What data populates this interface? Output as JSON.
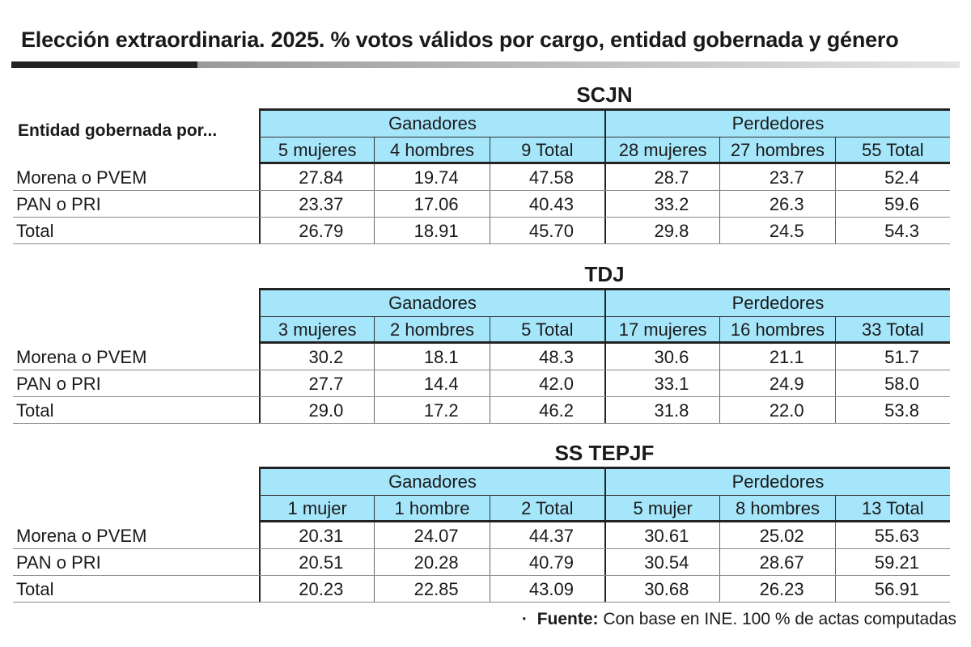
{
  "title": "Elección extraordinaria. 2025. % votos válidos por cargo, entidad gobernada y género",
  "row_header_label": "Entidad gobernada por...",
  "source": {
    "bullet": "·",
    "label": "Fuente:",
    "text": "Con base en INE. 100 % de actas computadas"
  },
  "chart_data": {
    "type": "table",
    "tables": [
      {
        "name": "SCJN",
        "groups": [
          "Ganadores",
          "Perdedores"
        ],
        "columns": [
          "5 mujeres",
          "4 hombres",
          "9 Total",
          "28 mujeres",
          "27 hombres",
          "55 Total"
        ],
        "rows": [
          {
            "label": "Morena o PVEM",
            "values": [
              "27.84",
              "19.74",
              "47.58",
              "28.7",
              "23.7",
              "52.4"
            ]
          },
          {
            "label": "PAN o PRI",
            "values": [
              "23.37",
              "17.06",
              "40.43",
              "33.2",
              "26.3",
              "59.6"
            ]
          },
          {
            "label": "Total",
            "values": [
              "26.79",
              "18.91",
              "45.70",
              "29.8",
              "24.5",
              "54.3"
            ]
          }
        ]
      },
      {
        "name": "TDJ",
        "groups": [
          "Ganadores",
          "Perdedores"
        ],
        "columns": [
          "3 mujeres",
          "2 hombres",
          "5 Total",
          "17 mujeres",
          "16 hombres",
          "33 Total"
        ],
        "rows": [
          {
            "label": "Morena o PVEM",
            "values": [
              "30.2",
              "18.1",
              "48.3",
              "30.6",
              "21.1",
              "51.7"
            ]
          },
          {
            "label": "PAN o PRI",
            "values": [
              "27.7",
              "14.4",
              "42.0",
              "33.1",
              "24.9",
              "58.0"
            ]
          },
          {
            "label": "Total",
            "values": [
              "29.0",
              "17.2",
              "46.2",
              "31.8",
              "22.0",
              "53.8"
            ]
          }
        ]
      },
      {
        "name": "SS TEPJF",
        "groups": [
          "Ganadores",
          "Perdedores"
        ],
        "columns": [
          "1 mujer",
          "1 hombre",
          "2 Total",
          "5 mujer",
          "8 hombres",
          "13 Total"
        ],
        "rows": [
          {
            "label": "Morena o PVEM",
            "values": [
              "20.31",
              "24.07",
              "44.37",
              "30.61",
              "25.02",
              "55.63"
            ]
          },
          {
            "label": "PAN o PRI",
            "values": [
              "20.51",
              "20.28",
              "40.79",
              "30.54",
              "28.67",
              "59.21"
            ]
          },
          {
            "label": "Total",
            "values": [
              "20.23",
              "22.85",
              "43.09",
              "30.68",
              "26.23",
              "56.91"
            ]
          }
        ]
      }
    ],
    "colors": {
      "header_fill": "#a6e6fb",
      "rule": "#222222"
    }
  }
}
